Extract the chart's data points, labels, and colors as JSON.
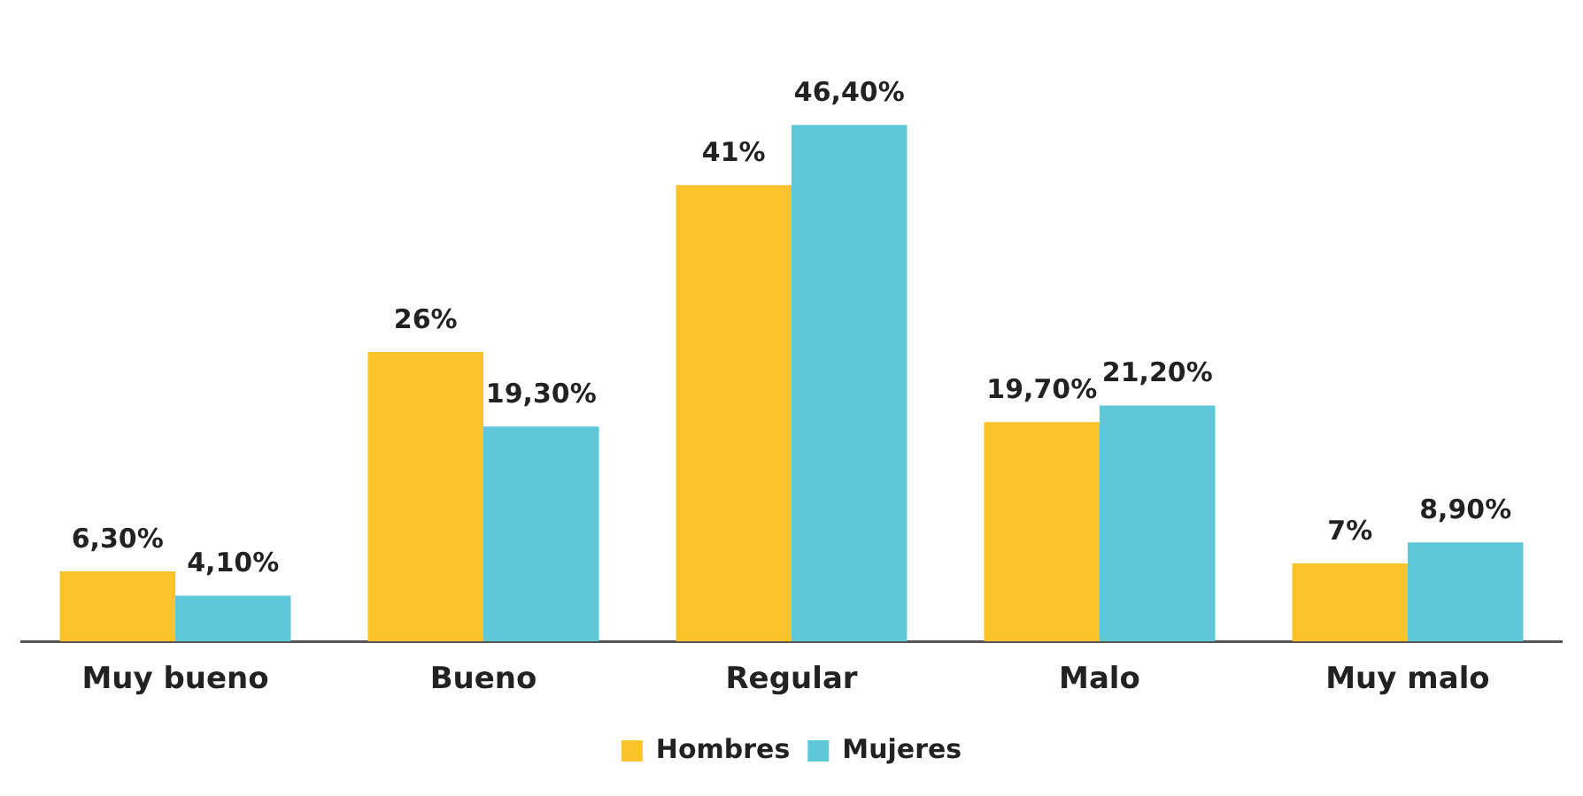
{
  "chart_data": {
    "type": "bar",
    "categories": [
      "Muy bueno",
      "Bueno",
      "Regular",
      "Malo",
      "Muy malo"
    ],
    "series": [
      {
        "name": "Hombres",
        "color": "#fdc32d",
        "values": [
          6.3,
          26,
          41,
          19.7,
          7
        ],
        "value_labels": [
          "6,30%",
          "26%",
          "41%",
          "19,70%",
          "7%"
        ]
      },
      {
        "name": "Mujeres",
        "color": "#5ec8d8",
        "values": [
          4.1,
          19.3,
          46.4,
          21.2,
          8.9
        ],
        "value_labels": [
          "4,10%",
          "19,30%",
          "46,40%",
          "21,20%",
          "8,90%"
        ]
      }
    ],
    "tick_labels": "x",
    "grid": false,
    "legend": "bottom"
  }
}
